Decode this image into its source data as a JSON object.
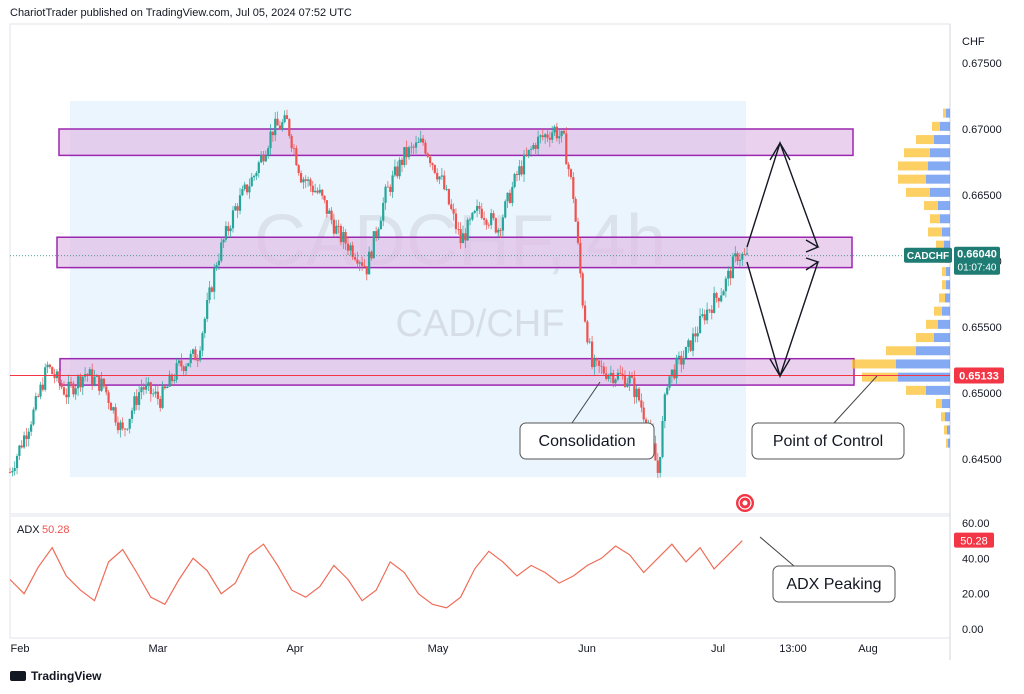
{
  "header": {
    "publisher_line": "ChariotTrader published on TradingView.com, Jul 05, 2024 07:52 UTC"
  },
  "footer": {
    "brand": "TradingView"
  },
  "watermark": {
    "symbol_tf": "CADCHF, 4h",
    "pair": "CAD/CHF"
  },
  "colors": {
    "up": "#26a69a",
    "down": "#ef5350",
    "zone_fill": "#e1bee7",
    "zone_stroke": "#9c27b0",
    "range_fill": "#e3f2fd",
    "price_badge": "#1e7c74",
    "poc_badge": "#f23645",
    "adx_line": "#ef6c57",
    "vp_up": "#fbc02d",
    "vp_down": "#5b8def"
  },
  "annotations": {
    "consolidation": "Consolidation",
    "poc": "Point of Control",
    "adx_peaking": "ADX Peaking"
  },
  "price_badge": {
    "symbol": "CADCHF",
    "price": "0.66040",
    "countdown": "01:07:40"
  },
  "poc_badge": {
    "price": "0.65133"
  },
  "adx": {
    "label": "ADX",
    "value": "50.28"
  },
  "chart_data": {
    "type": "candlestick",
    "symbol": "CADCHF",
    "timeframe": "4h",
    "currency_label": "CHF",
    "y_ticks": [
      "0.67500",
      "0.67000",
      "0.66500",
      "0.66000",
      "0.65500",
      "0.65000",
      "0.64500"
    ],
    "ylim": [
      0.642,
      0.6765
    ],
    "x_ticks": [
      "Feb",
      "Mar",
      "Apr",
      "May",
      "Jun",
      "Jul",
      "13:00",
      "Aug"
    ],
    "price_path": [
      [
        0,
        0.644
      ],
      [
        5,
        0.6485
      ],
      [
        8,
        0.652
      ],
      [
        12,
        0.65
      ],
      [
        16,
        0.6515
      ],
      [
        20,
        0.6505
      ],
      [
        24,
        0.647
      ],
      [
        28,
        0.6505
      ],
      [
        32,
        0.6495
      ],
      [
        36,
        0.652
      ],
      [
        40,
        0.653
      ],
      [
        44,
        0.66
      ],
      [
        48,
        0.664
      ],
      [
        52,
        0.6665
      ],
      [
        56,
        0.67
      ],
      [
        59,
        0.6705
      ],
      [
        62,
        0.6665
      ],
      [
        66,
        0.665
      ],
      [
        70,
        0.662
      ],
      [
        74,
        0.6605
      ],
      [
        76,
        0.6595
      ],
      [
        80,
        0.665
      ],
      [
        84,
        0.668
      ],
      [
        88,
        0.669
      ],
      [
        92,
        0.666
      ],
      [
        96,
        0.6615
      ],
      [
        100,
        0.664
      ],
      [
        104,
        0.6625
      ],
      [
        108,
        0.6665
      ],
      [
        112,
        0.669
      ],
      [
        116,
        0.67
      ],
      [
        118,
        0.669
      ],
      [
        120,
        0.665
      ],
      [
        122,
        0.657
      ],
      [
        124,
        0.652
      ],
      [
        128,
        0.6515
      ],
      [
        132,
        0.651
      ],
      [
        134,
        0.6495
      ],
      [
        136,
        0.6475
      ],
      [
        138,
        0.644
      ],
      [
        140,
        0.651
      ],
      [
        144,
        0.653
      ],
      [
        148,
        0.656
      ],
      [
        152,
        0.658
      ],
      [
        155,
        0.6605
      ],
      [
        157,
        0.6602
      ]
    ],
    "zones": [
      {
        "top": 0.67,
        "bottom": 0.668
      },
      {
        "top": 0.6618,
        "bottom": 0.6595
      },
      {
        "top": 0.6526,
        "bottom": 0.6506
      }
    ],
    "current_price": 0.6604,
    "point_of_control": 0.65133,
    "volume_profile": [
      {
        "price": 0.6712,
        "up": 3,
        "down": 4
      },
      {
        "price": 0.6702,
        "up": 8,
        "down": 10
      },
      {
        "price": 0.6692,
        "up": 18,
        "down": 16
      },
      {
        "price": 0.6682,
        "up": 26,
        "down": 20
      },
      {
        "price": 0.6672,
        "up": 30,
        "down": 22
      },
      {
        "price": 0.6662,
        "up": 28,
        "down": 24
      },
      {
        "price": 0.6652,
        "up": 24,
        "down": 20
      },
      {
        "price": 0.6642,
        "up": 14,
        "down": 12
      },
      {
        "price": 0.6632,
        "up": 10,
        "down": 10
      },
      {
        "price": 0.6622,
        "up": 14,
        "down": 8
      },
      {
        "price": 0.6612,
        "up": 8,
        "down": 6
      },
      {
        "price": 0.6602,
        "up": 5,
        "down": 5
      },
      {
        "price": 0.6592,
        "up": 4,
        "down": 4
      },
      {
        "price": 0.6582,
        "up": 4,
        "down": 4
      },
      {
        "price": 0.6572,
        "up": 6,
        "down": 5
      },
      {
        "price": 0.6562,
        "up": 8,
        "down": 8
      },
      {
        "price": 0.6552,
        "up": 12,
        "down": 12
      },
      {
        "price": 0.6542,
        "up": 18,
        "down": 16
      },
      {
        "price": 0.6532,
        "up": 30,
        "down": 34
      },
      {
        "price": 0.6522,
        "up": 44,
        "down": 54
      },
      {
        "price": 0.6512,
        "up": 36,
        "down": 52
      },
      {
        "price": 0.6502,
        "up": 20,
        "down": 24
      },
      {
        "price": 0.6492,
        "up": 6,
        "down": 8
      },
      {
        "price": 0.6482,
        "up": 4,
        "down": 5
      },
      {
        "price": 0.6472,
        "up": 3,
        "down": 3
      },
      {
        "price": 0.6462,
        "up": 2,
        "down": 2
      }
    ],
    "adx_panel": {
      "y_ticks": [
        "60.00",
        "40.00",
        "20.00",
        "0.00"
      ],
      "ylim": [
        0,
        60
      ],
      "series": [
        [
          0,
          28
        ],
        [
          3,
          20
        ],
        [
          6,
          35
        ],
        [
          9,
          46
        ],
        [
          12,
          30
        ],
        [
          15,
          22
        ],
        [
          18,
          16
        ],
        [
          21,
          38
        ],
        [
          24,
          45
        ],
        [
          27,
          32
        ],
        [
          30,
          18
        ],
        [
          33,
          14
        ],
        [
          36,
          28
        ],
        [
          39,
          40
        ],
        [
          42,
          33
        ],
        [
          45,
          20
        ],
        [
          48,
          26
        ],
        [
          51,
          42
        ],
        [
          54,
          48
        ],
        [
          57,
          36
        ],
        [
          60,
          22
        ],
        [
          63,
          18
        ],
        [
          66,
          24
        ],
        [
          69,
          36
        ],
        [
          72,
          28
        ],
        [
          75,
          16
        ],
        [
          78,
          22
        ],
        [
          81,
          38
        ],
        [
          84,
          32
        ],
        [
          87,
          20
        ],
        [
          90,
          14
        ],
        [
          93,
          12
        ],
        [
          96,
          18
        ],
        [
          99,
          34
        ],
        [
          102,
          44
        ],
        [
          105,
          38
        ],
        [
          108,
          30
        ],
        [
          111,
          36
        ],
        [
          114,
          32
        ],
        [
          117,
          26
        ],
        [
          120,
          30
        ],
        [
          123,
          36
        ],
        [
          126,
          40
        ],
        [
          129,
          47
        ],
        [
          132,
          42
        ],
        [
          135,
          32
        ],
        [
          138,
          40
        ],
        [
          141,
          48
        ],
        [
          144,
          38
        ],
        [
          147,
          46
        ],
        [
          150,
          34
        ],
        [
          153,
          42
        ],
        [
          156,
          50
        ]
      ]
    }
  }
}
